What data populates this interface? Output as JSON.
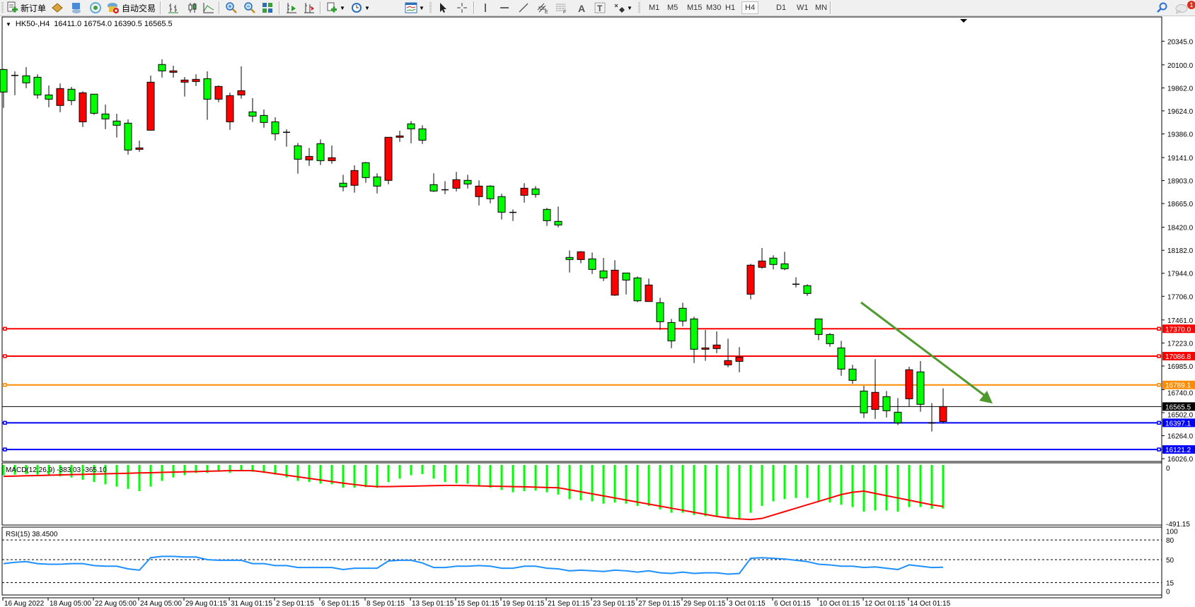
{
  "toolbar": {
    "new_order_label": "新订单",
    "auto_trading_label": "自动交易",
    "timeframes": [
      "M1",
      "M5",
      "M15",
      "M30",
      "H1",
      "H4",
      "D1",
      "W1",
      "MN"
    ],
    "active_timeframe": "H4",
    "notification_count": "1",
    "icons": [
      "new-order-icon",
      "market-watch-icon",
      "data-window-icon",
      "navigator-icon",
      "auto-trading-icon",
      "bar-chart-icon",
      "candlestick-icon",
      "line-chart-icon",
      "zoom-in-icon",
      "zoom-out-icon",
      "tile-windows-icon",
      "chart-shift-icon",
      "autoscroll-icon",
      "indicators-icon",
      "periods-icon",
      "templates-icon",
      "cursor-icon",
      "crosshair-icon",
      "vertical-line-icon",
      "horizontal-line-icon",
      "trendline-icon",
      "equidistant-channel-icon",
      "fibonacci-icon",
      "text-icon",
      "text-label-icon",
      "arrows-icon",
      "search-icon",
      "chat-icon"
    ]
  },
  "chart": {
    "symbol": "HK50-,H4",
    "ohlc": "16411.0 16754.0 16390.5 16565.5"
  },
  "chart_data": {
    "type": "candlestick",
    "symbol": "HK50-",
    "timeframe": "H4",
    "colors": {
      "bull": "#ff0000",
      "bear": "#00ff00",
      "outline": "#000000",
      "arrow": "#4f9a2f"
    },
    "candles": [
      [
        20052,
        20060,
        19655,
        19819
      ],
      [
        19991,
        20033,
        19786,
        19991
      ],
      [
        19987,
        20077,
        19859,
        19914
      ],
      [
        19972,
        20003,
        19750,
        19789
      ],
      [
        19789,
        19887,
        19662,
        19745
      ],
      [
        19680,
        19908,
        19611,
        19855
      ],
      [
        19848,
        19872,
        19684,
        19731
      ],
      [
        19511,
        19826,
        19457,
        19811
      ],
      [
        19797,
        19799,
        19582,
        19599
      ],
      [
        19592,
        19689,
        19435,
        19541
      ],
      [
        19519,
        19594,
        19348,
        19475
      ],
      [
        19497,
        19536,
        19172,
        19219
      ],
      [
        19226,
        19316,
        19201,
        19241
      ],
      [
        19424,
        19989,
        19424,
        19921
      ],
      [
        20104,
        20157,
        19969,
        20038
      ],
      [
        20023,
        20091,
        19969,
        20038
      ],
      [
        19921,
        19974,
        19772,
        19943
      ],
      [
        19928,
        20003,
        19881,
        19950
      ],
      [
        19957,
        20033,
        19531,
        19745
      ],
      [
        19745,
        19887,
        19713,
        19877
      ],
      [
        19511,
        19813,
        19428,
        19782
      ],
      [
        19789,
        20084,
        19750,
        19833
      ],
      [
        19614,
        19755,
        19509,
        19570
      ],
      [
        19577,
        19638,
        19450,
        19504
      ],
      [
        19511,
        19558,
        19318,
        19387
      ],
      [
        19403,
        19433,
        19253,
        19401
      ],
      [
        19263,
        19292,
        18975,
        19124
      ],
      [
        19117,
        19241,
        19055,
        19153
      ],
      [
        19285,
        19329,
        19063,
        19109
      ],
      [
        19109,
        19265,
        19077,
        19139
      ],
      [
        18876,
        18963,
        18792,
        18839
      ],
      [
        18854,
        19061,
        18778,
        19007
      ],
      [
        19088,
        19095,
        18880,
        18934
      ],
      [
        18941,
        18978,
        18770,
        18846
      ],
      [
        18905,
        19351,
        18865,
        19351
      ],
      [
        19351,
        19419,
        19304,
        19365
      ],
      [
        19490,
        19519,
        19289,
        19438
      ],
      [
        19438,
        19475,
        19282,
        19321
      ],
      [
        18861,
        18978,
        18785,
        18795
      ],
      [
        18808,
        18897,
        18763,
        18806
      ],
      [
        18824,
        18993,
        18792,
        18912
      ],
      [
        18905,
        18963,
        18821,
        18868
      ],
      [
        18737,
        18905,
        18646,
        18846
      ],
      [
        18846,
        18854,
        18668,
        18715
      ],
      [
        18737,
        18766,
        18500,
        18576
      ],
      [
        18574,
        18605,
        18485,
        18572
      ],
      [
        18751,
        18876,
        18675,
        18824
      ],
      [
        18817,
        18846,
        18726,
        18759
      ],
      [
        18605,
        18620,
        18434,
        18488
      ],
      [
        18481,
        18634,
        18419,
        18444
      ],
      [
        18108,
        18181,
        17952,
        18086
      ],
      [
        18086,
        18174,
        18047,
        18166
      ],
      [
        18093,
        18159,
        17937,
        17984
      ],
      [
        17969,
        18103,
        17864,
        17896
      ],
      [
        17718,
        18079,
        17710,
        17976
      ],
      [
        17947,
        17949,
        17725,
        17874
      ],
      [
        17896,
        17911,
        17645,
        17659
      ],
      [
        17652,
        17889,
        17652,
        17823
      ],
      [
        17640,
        17691,
        17359,
        17443
      ],
      [
        17435,
        17472,
        17169,
        17245
      ],
      [
        17582,
        17640,
        17396,
        17450
      ],
      [
        17472,
        17494,
        17016,
        17158
      ],
      [
        17158,
        17357,
        17038,
        17172
      ],
      [
        17165,
        17343,
        17118,
        17202
      ],
      [
        16997,
        17267,
        16972,
        17041
      ],
      [
        17033,
        17180,
        16921,
        17077
      ],
      [
        17728,
        18042,
        17674,
        18028
      ],
      [
        18006,
        18205,
        17991,
        18071
      ],
      [
        18101,
        18130,
        17984,
        18035
      ],
      [
        18042,
        18166,
        17976,
        17991
      ],
      [
        17831,
        17903,
        17798,
        17829
      ],
      [
        17816,
        17830,
        17710,
        17735
      ],
      [
        17472,
        17474,
        17250,
        17311
      ],
      [
        17311,
        17326,
        17184,
        17216
      ],
      [
        17172,
        17245,
        16884,
        16953
      ],
      [
        16953,
        16997,
        16800,
        16836
      ],
      [
        16726,
        16780,
        16446,
        16500
      ],
      [
        16536,
        17055,
        16438,
        16712
      ],
      [
        16668,
        16726,
        16453,
        16522
      ],
      [
        16507,
        16653,
        16373,
        16397
      ],
      [
        16646,
        16977,
        16566,
        16946
      ],
      [
        16924,
        17036,
        16512,
        16588
      ],
      [
        16396,
        16602,
        16307,
        16396
      ],
      [
        16411.0,
        16754.0,
        16390.5,
        16565.5
      ]
    ],
    "price_axis": {
      "range": [
        16026.0,
        20345.0
      ],
      "ticks": [
        "20345.0",
        "20100.0",
        "19862.0",
        "19624.0",
        "19386.0",
        "19141.0",
        "18903.0",
        "18665.0",
        "18420.0",
        "18182.0",
        "17944.0",
        "17706.0",
        "17461.0",
        "17223.0",
        "16985.0",
        "16740.0",
        "16502.0",
        "16264.0",
        "16026.0"
      ]
    },
    "levels": [
      {
        "value": "17370.0",
        "color": "#ff0000",
        "text_color": "#ffffff"
      },
      {
        "value": "17086.8",
        "color": "#ff0000",
        "text_color": "#ffffff"
      },
      {
        "value": "16789.1",
        "color": "#ff8c00",
        "text_color": "#ffffff"
      },
      {
        "value": "16397.1",
        "color": "#0000ff",
        "text_color": "#ffffff"
      },
      {
        "value": "16121.2",
        "color": "#0000ff",
        "text_color": "#ffffff"
      }
    ],
    "bid": {
      "value": "16565.5",
      "color": "#000000",
      "text_color": "#ffffff"
    },
    "time_labels": [
      "16 Aug 2022",
      "18 Aug 05:00",
      "22 Aug 05:00",
      "24 Aug 05:00",
      "29 Aug 01:15",
      "31 Aug 01:15",
      "2 Sep 01:15",
      "6 Sep 01:15",
      "8 Sep 01:15",
      "13 Sep 01:15",
      "15 Sep 01:15",
      "19 Sep 01:15",
      "21 Sep 01:15",
      "23 Sep 01:15",
      "27 Sep 01:15",
      "29 Sep 01:15",
      "3 Oct 01:15",
      "6 Oct 01:15",
      "10 Oct 01:15",
      "12 Oct 01:15",
      "14 Oct 01:15"
    ],
    "annotation": {
      "type": "arrow",
      "direction": "down-right",
      "color": "#4f9a2f"
    },
    "macd": {
      "label": "MACD(12,26,9) -383.03 -365.10",
      "ticks": [
        "0",
        "-491.15"
      ],
      "range": [
        -491.15,
        0
      ],
      "hist_color": "#00ff00",
      "signal_color": "#ff0000",
      "hist": [
        -90,
        -85,
        -80,
        -85,
        -90,
        -100,
        -110,
        -130,
        -150,
        -170,
        -190,
        -210,
        -230,
        -190,
        -140,
        -110,
        -90,
        -70,
        -70,
        -60,
        -70,
        -55,
        -60,
        -70,
        -85,
        -110,
        -140,
        -150,
        -165,
        -170,
        -200,
        -200,
        -195,
        -200,
        -150,
        -120,
        -90,
        -80,
        -120,
        -150,
        -160,
        -165,
        -180,
        -200,
        -220,
        -240,
        -230,
        -225,
        -240,
        -260,
        -300,
        -310,
        -320,
        -340,
        -330,
        -340,
        -360,
        -360,
        -390,
        -420,
        -420,
        -440,
        -450,
        -455,
        -470,
        -480,
        -420,
        -360,
        -320,
        -300,
        -290,
        -290,
        -320,
        -330,
        -350,
        -370,
        -410,
        -400,
        -400,
        -410,
        -370,
        -370,
        -385,
        -383.03
      ],
      "signal": [
        -100,
        -98,
        -95,
        -93,
        -90,
        -88,
        -85,
        -83,
        -80,
        -78,
        -75,
        -73,
        -70,
        -68,
        -65,
        -63,
        -60,
        -58,
        -55,
        -53,
        -50,
        -50,
        -50,
        -62,
        -76,
        -90,
        -104,
        -118,
        -132,
        -146,
        -160,
        -172,
        -184,
        -190,
        -190,
        -188,
        -186,
        -184,
        -182,
        -180,
        -180,
        -182,
        -184,
        -186,
        -188,
        -190,
        -192,
        -195,
        -198,
        -200,
        -218,
        -236,
        -254,
        -272,
        -290,
        -308,
        -326,
        -344,
        -362,
        -380,
        -398,
        -416,
        -434,
        -452,
        -466,
        -474,
        -480,
        -470,
        -440,
        -410,
        -380,
        -350,
        -320,
        -290,
        -260,
        -240,
        -230,
        -250,
        -270,
        -290,
        -310,
        -330,
        -350,
        -365.1
      ]
    },
    "rsi": {
      "label": "RSI(15) 38.4500",
      "ticks": [
        "100",
        "80",
        "50",
        "15",
        "0"
      ],
      "levels": [
        80,
        50,
        15
      ],
      "color": "#1e90ff",
      "values": [
        44,
        46,
        47,
        44,
        43,
        43,
        44,
        44,
        41,
        40,
        40,
        36,
        34,
        53,
        55,
        55,
        54,
        54,
        50,
        49,
        49,
        49,
        44,
        44,
        41,
        41,
        38,
        38,
        38,
        38,
        35,
        37,
        37,
        37,
        48,
        49,
        49,
        45,
        38,
        38,
        40,
        40,
        41,
        40,
        37,
        37,
        40,
        40,
        37,
        36,
        33,
        34,
        33,
        32,
        34,
        33,
        31,
        33,
        30,
        29,
        31,
        29,
        30,
        30,
        28,
        29,
        52,
        53,
        52,
        51,
        49,
        47,
        43,
        42,
        40,
        40,
        38,
        39,
        37,
        35,
        42,
        40,
        38,
        38.45
      ]
    }
  }
}
